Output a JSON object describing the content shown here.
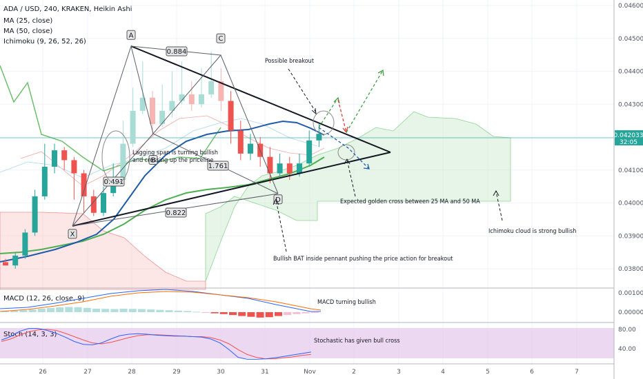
{
  "chart_data": {
    "type": "candlestick",
    "title": "ADA / USD, 240, KRAKEN, Heikin Ashi",
    "legend": [
      "MA (25, close)",
      "MA (50, close)",
      "Ichimoku (9, 26, 52, 26)"
    ],
    "price_axis": {
      "ticks": [
        "0.046000",
        "0.045000",
        "0.044000",
        "0.043000",
        "0.042000",
        "0.041000",
        "0.040000",
        "0.039000",
        "0.038000"
      ],
      "tick_values": [
        0.046,
        0.045,
        0.044,
        0.043,
        0.042,
        0.041,
        0.04,
        0.039,
        0.038
      ],
      "last_price": "0.042033",
      "countdown": "32:05"
    },
    "time_axis": {
      "ticks": [
        "26",
        "27",
        "28",
        "29",
        "30",
        "31",
        "Nov",
        "2",
        "3",
        "4",
        "5",
        "6",
        "7"
      ]
    },
    "candles": [
      [
        0.0382,
        0.0381,
        0.0383,
        0.0381
      ],
      [
        0.0381,
        0.0384,
        0.0385,
        0.038
      ],
      [
        0.0384,
        0.0391,
        0.0392,
        0.0383
      ],
      [
        0.0391,
        0.0402,
        0.0404,
        0.039
      ],
      [
        0.0402,
        0.0411,
        0.0418,
        0.0401
      ],
      [
        0.0411,
        0.0416,
        0.0418,
        0.0409
      ],
      [
        0.0416,
        0.0413,
        0.0417,
        0.041
      ],
      [
        0.0413,
        0.0409,
        0.0414,
        0.0401
      ],
      [
        0.0409,
        0.0402,
        0.041,
        0.0397
      ],
      [
        0.0402,
        0.0397,
        0.0404,
        0.0396
      ],
      [
        0.0397,
        0.0403,
        0.0405,
        0.0396
      ],
      [
        0.0403,
        0.0407,
        0.0412,
        0.0402
      ],
      [
        0.0407,
        0.0418,
        0.0425,
        0.0406
      ],
      [
        0.0418,
        0.0428,
        0.0435,
        0.0417
      ],
      [
        0.0428,
        0.0432,
        0.0443,
        0.0427
      ],
      [
        0.0432,
        0.0424,
        0.0434,
        0.042
      ],
      [
        0.0424,
        0.0428,
        0.0436,
        0.0423
      ],
      [
        0.0428,
        0.0431,
        0.044,
        0.0426
      ],
      [
        0.0431,
        0.0433,
        0.0443,
        0.043
      ],
      [
        0.0433,
        0.043,
        0.0437,
        0.0428
      ],
      [
        0.043,
        0.0433,
        0.0441,
        0.0429
      ],
      [
        0.0433,
        0.0437,
        0.0446,
        0.0432
      ],
      [
        0.0437,
        0.0431,
        0.0441,
        0.0428
      ],
      [
        0.0431,
        0.0422,
        0.0434,
        0.0418
      ],
      [
        0.0422,
        0.0415,
        0.0425,
        0.0413
      ],
      [
        0.0415,
        0.0418,
        0.0421,
        0.0413
      ],
      [
        0.0418,
        0.0414,
        0.042,
        0.0411
      ],
      [
        0.0414,
        0.0409,
        0.0417,
        0.0406
      ],
      [
        0.0409,
        0.0412,
        0.0415,
        0.0408
      ],
      [
        0.0412,
        0.0409,
        0.0414,
        0.0407
      ],
      [
        0.0409,
        0.0412,
        0.0415,
        0.0408
      ],
      [
        0.0412,
        0.0419,
        0.0422,
        0.0411
      ],
      [
        0.0419,
        0.0421,
        0.0424,
        0.0417
      ]
    ],
    "pattern_points": [
      {
        "label": "X",
        "price": 0.0393
      },
      {
        "label": "A",
        "price": 0.0448
      },
      {
        "label": "B",
        "price": 0.04155
      },
      {
        "label": "C",
        "price": 0.0447
      },
      {
        "label": "D",
        "price": 0.04035
      }
    ],
    "ratios": [
      "0.884",
      "0.491",
      "1.761",
      "0.822"
    ],
    "annotations": {
      "breakout": "Possible breakout",
      "lagging_1": "Lagging span is turning bullish",
      "lagging_2": "and crossing up the priceline",
      "golden_cross": "Expected golden cross between 25 MA and 50 MA",
      "ichimoku": "Ichimoku cloud is strong bullish",
      "bat": "Bullish BAT inside pennant pushing the price action for breakout"
    },
    "macd": {
      "title": "MACD (12, 26, close, 9)",
      "note": "MACD turning bullish",
      "ticks": [
        "0.001000",
        "0.000000"
      ],
      "tick_values": [
        0.001,
        0.0
      ],
      "histogram": [
        5e-05,
        8e-05,
        0.0001,
        0.00014,
        0.00018,
        0.00022,
        0.00025,
        0.00027,
        0.00026,
        0.00022,
        0.00018,
        0.00017,
        0.00016,
        0.00018,
        0.00017,
        0.00016,
        0.00014,
        0.00012,
        0.0001,
        8e-05,
        6e-05,
        2e-05,
        -2e-05,
        -6e-05,
        -0.0001,
        -0.00015,
        -0.0002,
        -0.00024,
        -0.00028,
        -0.00026,
        -0.0002,
        -0.00015,
        -0.0001,
        -6e-05,
        -4e-05
      ]
    },
    "stoch": {
      "title": "Stoch (14, 3, 3)",
      "note": "Stochastic has given bull cross",
      "ticks": [
        "80.00",
        "40.00"
      ],
      "tick_values": [
        80,
        40
      ],
      "k": [
        58,
        65,
        76,
        82,
        82,
        78,
        72,
        64,
        55,
        49,
        48,
        52,
        60,
        67,
        70,
        71,
        70,
        68,
        67,
        66,
        66,
        65,
        64,
        60,
        52,
        38,
        22,
        18,
        18,
        19,
        21,
        24,
        27,
        30,
        33
      ],
      "d": [
        55,
        60,
        68,
        75,
        79,
        80,
        78,
        72,
        65,
        58,
        52,
        50,
        53,
        58,
        63,
        67,
        69,
        69,
        68,
        67,
        66,
        65,
        65,
        63,
        58,
        50,
        38,
        28,
        22,
        19,
        19,
        21,
        23,
        26,
        28
      ]
    }
  }
}
